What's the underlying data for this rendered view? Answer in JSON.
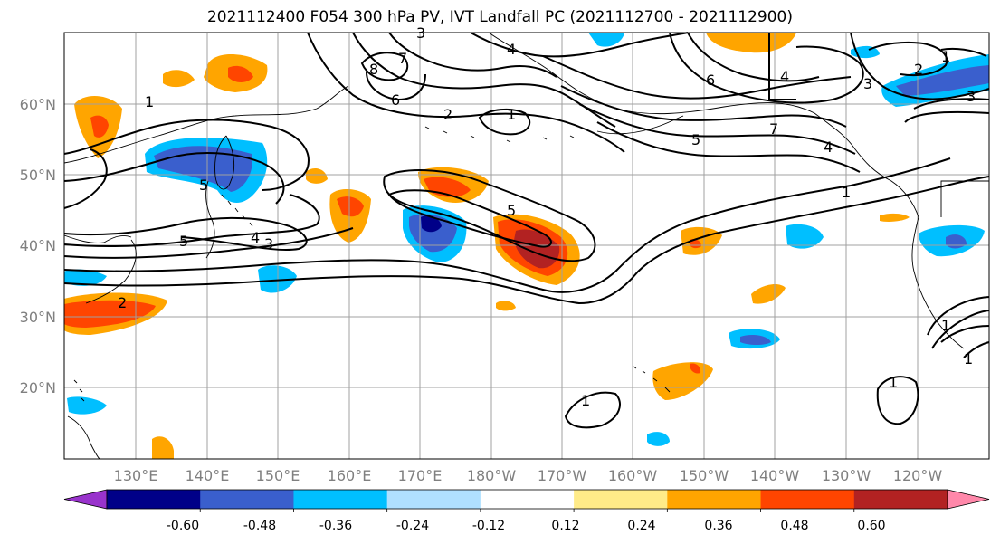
{
  "title": "2021112400 F054 300 hPa PV, IVT Landfall PC (2021112700 - 2021112900)",
  "lat_labels": [
    "60°N",
    "50°N",
    "40°N",
    "30°N",
    "20°N"
  ],
  "lon_labels": [
    "130°E",
    "140°E",
    "150°E",
    "160°E",
    "170°E",
    "180°W",
    "170°W",
    "160°W",
    "150°W",
    "140°W",
    "130°W",
    "120°W"
  ],
  "colorbar": {
    "colors": [
      "#9933cc",
      "#000088",
      "#3a5fcd",
      "#00bfff",
      "#b0e0ff",
      "#ffffff",
      "#ffeb88",
      "#ffa500",
      "#ff4500",
      "#b22222",
      "#ff88aa"
    ],
    "tick_labels": [
      "-0.60",
      "-0.48",
      "-0.36",
      "-0.24",
      "-0.12",
      "0.12",
      "0.24",
      "0.36",
      "0.48",
      "0.60"
    ]
  },
  "contour_labels": [
    "1",
    "2",
    "3",
    "4",
    "5",
    "6",
    "7",
    "8",
    "1",
    "2",
    "3",
    "4",
    "5",
    "6",
    "7",
    "1",
    "3",
    "4",
    "5",
    "1",
    "1",
    "1",
    "1",
    "2",
    "3",
    "4",
    "5",
    "1"
  ],
  "colors": {
    "contour": "#000000",
    "grid": "#a0a0a0",
    "coast": "#000000"
  }
}
